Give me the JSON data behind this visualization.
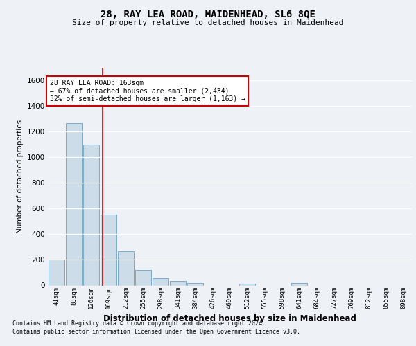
{
  "title": "28, RAY LEA ROAD, MAIDENHEAD, SL6 8QE",
  "subtitle": "Size of property relative to detached houses in Maidenhead",
  "xlabel": "Distribution of detached houses by size in Maidenhead",
  "ylabel": "Number of detached properties",
  "bar_color": "#ccdce8",
  "bar_edge_color": "#7aaac8",
  "categories": [
    "41sqm",
    "83sqm",
    "126sqm",
    "169sqm",
    "212sqm",
    "255sqm",
    "298sqm",
    "341sqm",
    "384sqm",
    "426sqm",
    "469sqm",
    "512sqm",
    "555sqm",
    "598sqm",
    "641sqm",
    "684sqm",
    "727sqm",
    "769sqm",
    "812sqm",
    "855sqm",
    "898sqm"
  ],
  "values": [
    200,
    1265,
    1100,
    555,
    265,
    120,
    55,
    33,
    20,
    0,
    0,
    15,
    0,
    0,
    20,
    0,
    0,
    0,
    0,
    0,
    0
  ],
  "ylim": [
    0,
    1700
  ],
  "yticks": [
    0,
    200,
    400,
    600,
    800,
    1000,
    1200,
    1400,
    1600
  ],
  "property_line_x": 2.67,
  "annotation_text": "28 RAY LEA ROAD: 163sqm\n← 67% of detached houses are smaller (2,434)\n32% of semi-detached houses are larger (1,163) →",
  "footer_line1": "Contains HM Land Registry data © Crown copyright and database right 2024.",
  "footer_line2": "Contains public sector information licensed under the Open Government Licence v3.0.",
  "bg_color": "#eef2f7",
  "grid_color": "#ffffff",
  "annotation_box_color": "#ffffff",
  "annotation_box_edge": "#cc0000",
  "red_line_color": "#cc0000"
}
